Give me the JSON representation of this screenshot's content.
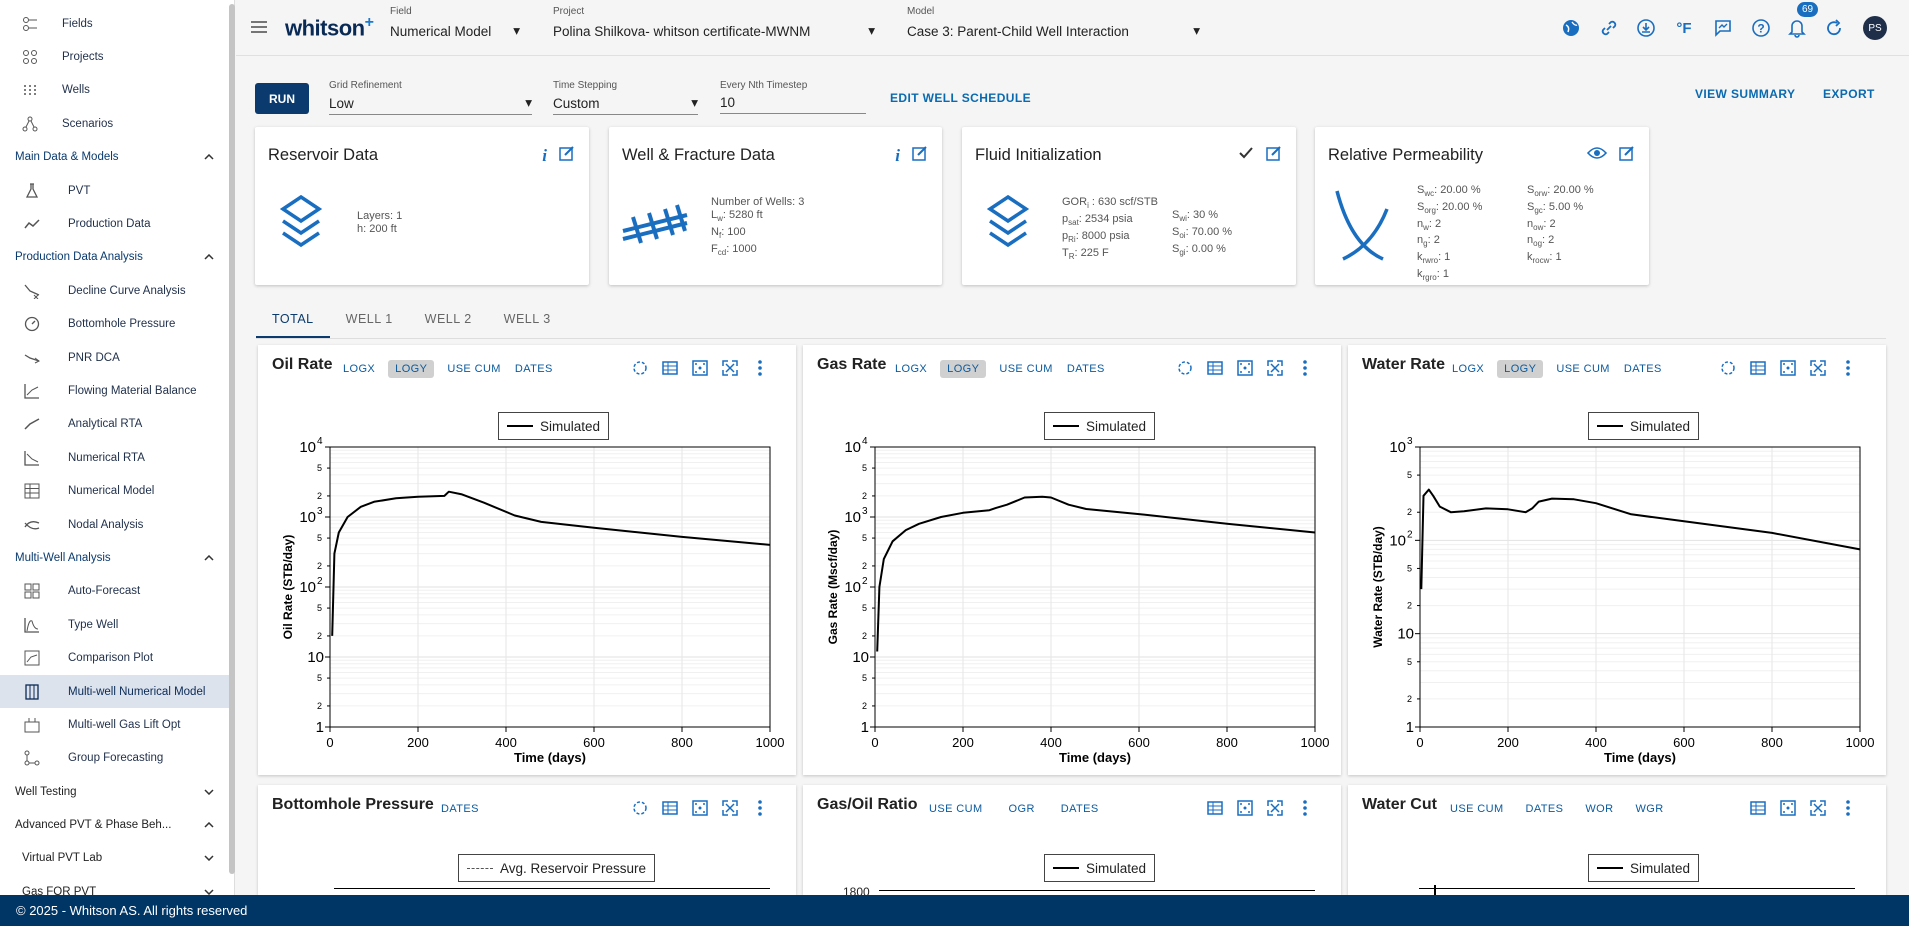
{
  "sidebar": {
    "top_items": [
      {
        "label": "Fields",
        "icon": "fields-icon"
      },
      {
        "label": "Projects",
        "icon": "projects-icon"
      },
      {
        "label": "Wells",
        "icon": "wells-icon"
      },
      {
        "label": "Scenarios",
        "icon": "scenarios-icon"
      }
    ],
    "section_main": "Main Data & Models",
    "main_items": [
      {
        "label": "PVT",
        "icon": "flask-icon"
      },
      {
        "label": "Production Data",
        "icon": "trend-icon"
      }
    ],
    "section_pda": "Production Data Analysis",
    "pda_items": [
      {
        "label": "Decline Curve Analysis",
        "icon": "dca-icon"
      },
      {
        "label": "Bottomhole Pressure",
        "icon": "gauge-icon"
      },
      {
        "label": "PNR DCA",
        "icon": "pnr-icon"
      },
      {
        "label": "Flowing Material Balance",
        "icon": "fmb-icon"
      },
      {
        "label": "Analytical RTA",
        "icon": "rta-icon"
      },
      {
        "label": "Numerical RTA",
        "icon": "nrta-icon"
      },
      {
        "label": "Numerical Model",
        "icon": "grid-icon"
      },
      {
        "label": "Nodal Analysis",
        "icon": "nodal-icon"
      }
    ],
    "section_mwa": "Multi-Well Analysis",
    "mwa_items": [
      {
        "label": "Auto-Forecast",
        "icon": "autoforecast-icon"
      },
      {
        "label": "Type Well",
        "icon": "typewell-icon"
      },
      {
        "label": "Comparison Plot",
        "icon": "comparison-icon"
      },
      {
        "label": "Multi-well Numerical Model",
        "icon": "multiwell-icon"
      },
      {
        "label": "Multi-well Gas Lift Opt",
        "icon": "gaslift-icon"
      },
      {
        "label": "Group Forecasting",
        "icon": "group-icon"
      }
    ],
    "section_wt": "Well Testing",
    "section_adv": "Advanced PVT & Phase Beh...",
    "adv_items": [
      {
        "label": "Virtual PVT Lab"
      },
      {
        "label": "Gas FOR PVT"
      }
    ]
  },
  "topbar": {
    "logo": "whitson",
    "logo_sup": "+",
    "field_label": "Field",
    "field_value": "Numerical Model",
    "project_label": "Project",
    "project_value": "Polina Shilkova- whitson certificate-MWNM",
    "model_label": "Model",
    "model_value": "Case 3: Parent-Child Well Interaction",
    "units": "°F",
    "notif_count": "69",
    "avatar": "PS"
  },
  "controls": {
    "run": "RUN",
    "grid_label": "Grid Refinement",
    "grid_value": "Low",
    "time_label": "Time Stepping",
    "time_value": "Custom",
    "nth_label": "Every Nth Timestep",
    "nth_value": "10",
    "edit_schedule": "EDIT WELL SCHEDULE",
    "view_summary": "VIEW SUMMARY",
    "export": "EXPORT"
  },
  "cards": {
    "reservoir": {
      "title": "Reservoir Data",
      "layers": "Layers:  1",
      "h": "h:  200 ft"
    },
    "well": {
      "title": "Well & Fracture Data",
      "nwells": "Number of Wells:  3",
      "lw_sym": "L",
      "lw_sub": "w",
      "lw_val": ":  5280 ft",
      "nf_sym": "N",
      "nf_sub": "f",
      "nf_val": ":  100",
      "fcd_sym": "F",
      "fcd_sub": "cd",
      "fcd_val": ":  1000"
    },
    "fluid": {
      "title": "Fluid Initialization",
      "gor_sym": "GOR",
      "gor_sub": "i",
      "gor_val": " :  630 scf/STB",
      "psat_sym": "p",
      "psat_sub": "sat",
      "psat_val": ":  2534 psia",
      "pri_sym": "p",
      "pri_sub": "Ri",
      "pri_val": ":  8000 psia",
      "tr_sym": "T",
      "tr_sub": "R",
      "tr_val": ":  225 F",
      "swi_sym": "S",
      "swi_sub": "wi",
      "swi_val": ":  30 %",
      "soi_sym": "S",
      "soi_sub": "oi",
      "soi_val": ":  70.00 %",
      "sgi_sym": "S",
      "sgi_sub": "gi",
      "sgi_val": ":  0.00 %"
    },
    "relperm": {
      "title": "Relative Permeability",
      "c1": [
        {
          "s": "S",
          "b": "wc",
          "v": ":  20.00 %"
        },
        {
          "s": "S",
          "b": "org",
          "v": ":  20.00 %"
        },
        {
          "s": "n",
          "b": "w",
          "v": ":  2"
        },
        {
          "s": "n",
          "b": "g",
          "v": ":  2"
        },
        {
          "s": "k",
          "b": "rwro",
          "v": ":  1"
        },
        {
          "s": "k",
          "b": "rgro",
          "v": ":  1"
        }
      ],
      "c2": [
        {
          "s": "S",
          "b": "orw",
          "v": ":  20.00 %"
        },
        {
          "s": "S",
          "b": "gc",
          "v": ":  5.00 %"
        },
        {
          "s": "n",
          "b": "ow",
          "v": ":  2"
        },
        {
          "s": "n",
          "b": "og",
          "v": ":  2"
        },
        {
          "s": "k",
          "b": "rocw",
          "v": ":  1"
        }
      ]
    }
  },
  "tabs": [
    "TOTAL",
    "WELL 1",
    "WELL 2",
    "WELL 3"
  ],
  "panels": {
    "oil": {
      "title": "Oil Rate",
      "opts": [
        "LOGX",
        "LOGY",
        "USE CUM",
        "DATES"
      ],
      "ylabel": "Oil Rate (STB/day)"
    },
    "gas": {
      "title": "Gas Rate",
      "opts": [
        "LOGX",
        "LOGY",
        "USE CUM",
        "DATES"
      ],
      "ylabel": "Gas Rate (Mscf/day)"
    },
    "water": {
      "title": "Water Rate",
      "opts": [
        "LOGX",
        "LOGY",
        "USE CUM",
        "DATES"
      ],
      "ylabel": "Water Rate (STB/day)"
    },
    "bhp": {
      "title": "Bottomhole Pressure",
      "opts": [
        "DATES"
      ],
      "legend": "Avg. Reservoir Pressure"
    },
    "gor": {
      "title": "Gas/Oil Ratio",
      "opts": [
        "USE CUM",
        "OGR",
        "DATES"
      ],
      "legend": "Simulated",
      "ytick": "1800"
    },
    "wc": {
      "title": "Water Cut",
      "opts": [
        "USE CUM",
        "DATES",
        "WOR",
        "WGR"
      ],
      "legend": "Simulated"
    }
  },
  "chart_data": [
    {
      "type": "line",
      "ylabel": "Oil Rate (STB/day)",
      "xlabel": "Time (days)",
      "xlim": [
        0,
        1000
      ],
      "ylim": [
        1,
        10000
      ],
      "yscale": "log",
      "legend": [
        "Simulated"
      ],
      "series": [
        {
          "name": "Simulated",
          "x": [
            5,
            10,
            20,
            40,
            70,
            100,
            150,
            200,
            260,
            270,
            300,
            350,
            420,
            480,
            600,
            800,
            1000
          ],
          "y": [
            20,
            300,
            600,
            1000,
            1400,
            1650,
            1850,
            1950,
            2000,
            2300,
            2100,
            1600,
            1050,
            850,
            700,
            520,
            400
          ]
        }
      ]
    },
    {
      "type": "line",
      "ylabel": "Gas Rate (Mscf/day)",
      "xlabel": "Time (days)",
      "xlim": [
        0,
        1000
      ],
      "ylim": [
        1,
        10000
      ],
      "yscale": "log",
      "legend": [
        "Simulated"
      ],
      "series": [
        {
          "name": "Simulated",
          "x": [
            5,
            10,
            20,
            40,
            70,
            100,
            150,
            200,
            260,
            275,
            300,
            340,
            380,
            400,
            440,
            480,
            600,
            800,
            1000
          ],
          "y": [
            12,
            100,
            250,
            450,
            650,
            800,
            1000,
            1150,
            1250,
            1350,
            1500,
            1900,
            1950,
            1900,
            1500,
            1300,
            1100,
            800,
            600
          ]
        }
      ]
    },
    {
      "type": "line",
      "ylabel": "Water Rate (STB/day)",
      "xlabel": "Time (days)",
      "xlim": [
        0,
        1000
      ],
      "ylim": [
        1,
        1000
      ],
      "yscale": "log",
      "legend": [
        "Simulated"
      ],
      "series": [
        {
          "name": "Simulated",
          "x": [
            3,
            8,
            20,
            30,
            45,
            70,
            100,
            150,
            200,
            240,
            255,
            270,
            300,
            350,
            400,
            480,
            600,
            800,
            1000
          ],
          "y": [
            30,
            300,
            350,
            300,
            230,
            200,
            205,
            220,
            215,
            200,
            220,
            260,
            280,
            275,
            250,
            190,
            160,
            120,
            80
          ]
        }
      ]
    }
  ]
}
